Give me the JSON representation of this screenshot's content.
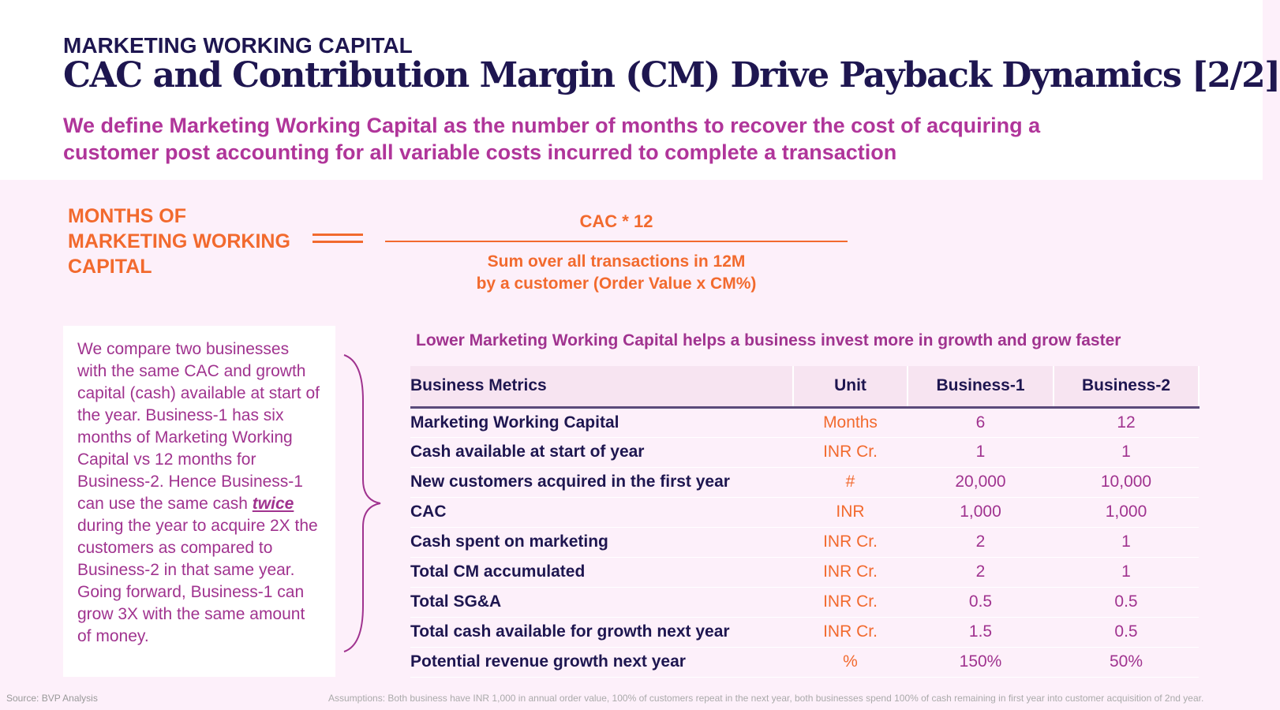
{
  "header": {
    "kicker": "MARKETING WORKING CAPITAL",
    "title": "CAC and Contribution Margin (CM) Drive Payback Dynamics [2/2]",
    "subtitle": "We define Marketing Working Capital as the number of months to recover the cost of acquiring a customer post accounting for all variable costs incurred to complete a transaction"
  },
  "formula": {
    "label": "MONTHS OF MARKETING WORKING CAPITAL",
    "numerator": "CAC * 12",
    "denominator_1": "Sum over all transactions in 12M",
    "denominator_2": "by a customer (Order Value x CM%)"
  },
  "explainer": {
    "part1": "We compare two businesses with the same CAC and growth capital (cash) available at start of the year. Business-1 has six months of Marketing Working Capital vs 12 months for Business-2. Hence Business-1 can use the same cash ",
    "emphasis": "twice ",
    "part2": "during the year to acquire 2X the customers as compared to Business-2 in that same year. Going forward, Business-1 can grow 3X with the same amount of money."
  },
  "table": {
    "caption": "Lower Marketing Working Capital helps a business invest more in growth and grow faster",
    "headers": [
      "Business Metrics",
      "Unit",
      "Business-1",
      "Business-2"
    ],
    "rows": [
      [
        "Marketing Working Capital",
        "Months",
        "6",
        "12"
      ],
      [
        "Cash available at start of year",
        "INR Cr.",
        "1",
        "1"
      ],
      [
        "New customers acquired in the first year",
        "#",
        "20,000",
        "10,000"
      ],
      [
        "CAC",
        "INR",
        "1,000",
        "1,000"
      ],
      [
        "Cash spent on marketing",
        "INR Cr.",
        "2",
        "1"
      ],
      [
        "Total CM accumulated",
        "INR Cr.",
        "2",
        "1"
      ],
      [
        "Total SG&A",
        "INR Cr.",
        "0.5",
        "0.5"
      ],
      [
        "Total cash available for growth next year",
        "INR Cr.",
        "1.5",
        "0.5"
      ],
      [
        "Potential revenue growth next year",
        "%",
        "150%",
        "50%"
      ]
    ]
  },
  "footer": {
    "source": "Source: BVP Analysis",
    "assumptions": "Assumptions: Both business have INR 1,000 in annual order value, 100% of customers repeat in the next year, both businesses spend 100% of cash remaining in first year into customer acquisition of 2nd year."
  },
  "colors": {
    "navy": "#1e1650",
    "orange": "#f26a2e",
    "magenta": "#a0338f"
  }
}
